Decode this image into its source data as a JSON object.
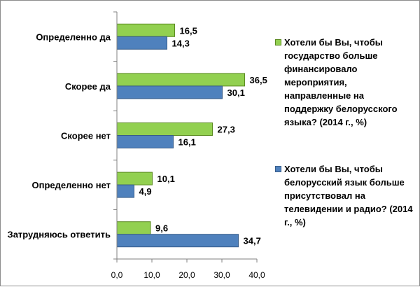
{
  "chart_data": {
    "type": "bar",
    "orientation": "horizontal",
    "categories": [
      "Определенно да",
      "Скорее да",
      "Скорее нет",
      "Определенно нет",
      "Затрудняюсь ответить"
    ],
    "series": [
      {
        "name": "Хотели бы Вы, чтобы государство больше финансировало мероприятия, направленные на поддержку белорусского языка? (2014 г., %)",
        "color": "#92d050",
        "border": "#5c8a22",
        "values": [
          16.5,
          36.5,
          27.3,
          10.1,
          9.6
        ],
        "labels": [
          "16,5",
          "36,5",
          "27,3",
          "10,1",
          "9,6"
        ]
      },
      {
        "name": "Хотели бы Вы, чтобы белорусский язык больше присутствовал на телевидении и радио? (2014 г., %)",
        "color": "#4f81bd",
        "border": "#385d8a",
        "values": [
          14.3,
          30.1,
          16.1,
          4.9,
          34.7
        ],
        "labels": [
          "14,3",
          "30,1",
          "16,1",
          "4,9",
          "34,7"
        ]
      }
    ],
    "xlim": [
      0,
      40
    ],
    "xticks": [
      0,
      10,
      20,
      30,
      40
    ],
    "xtick_labels": [
      "0,0",
      "10,0",
      "20,0",
      "30,0",
      "40,0"
    ],
    "grid": false,
    "legend_position": "right"
  }
}
